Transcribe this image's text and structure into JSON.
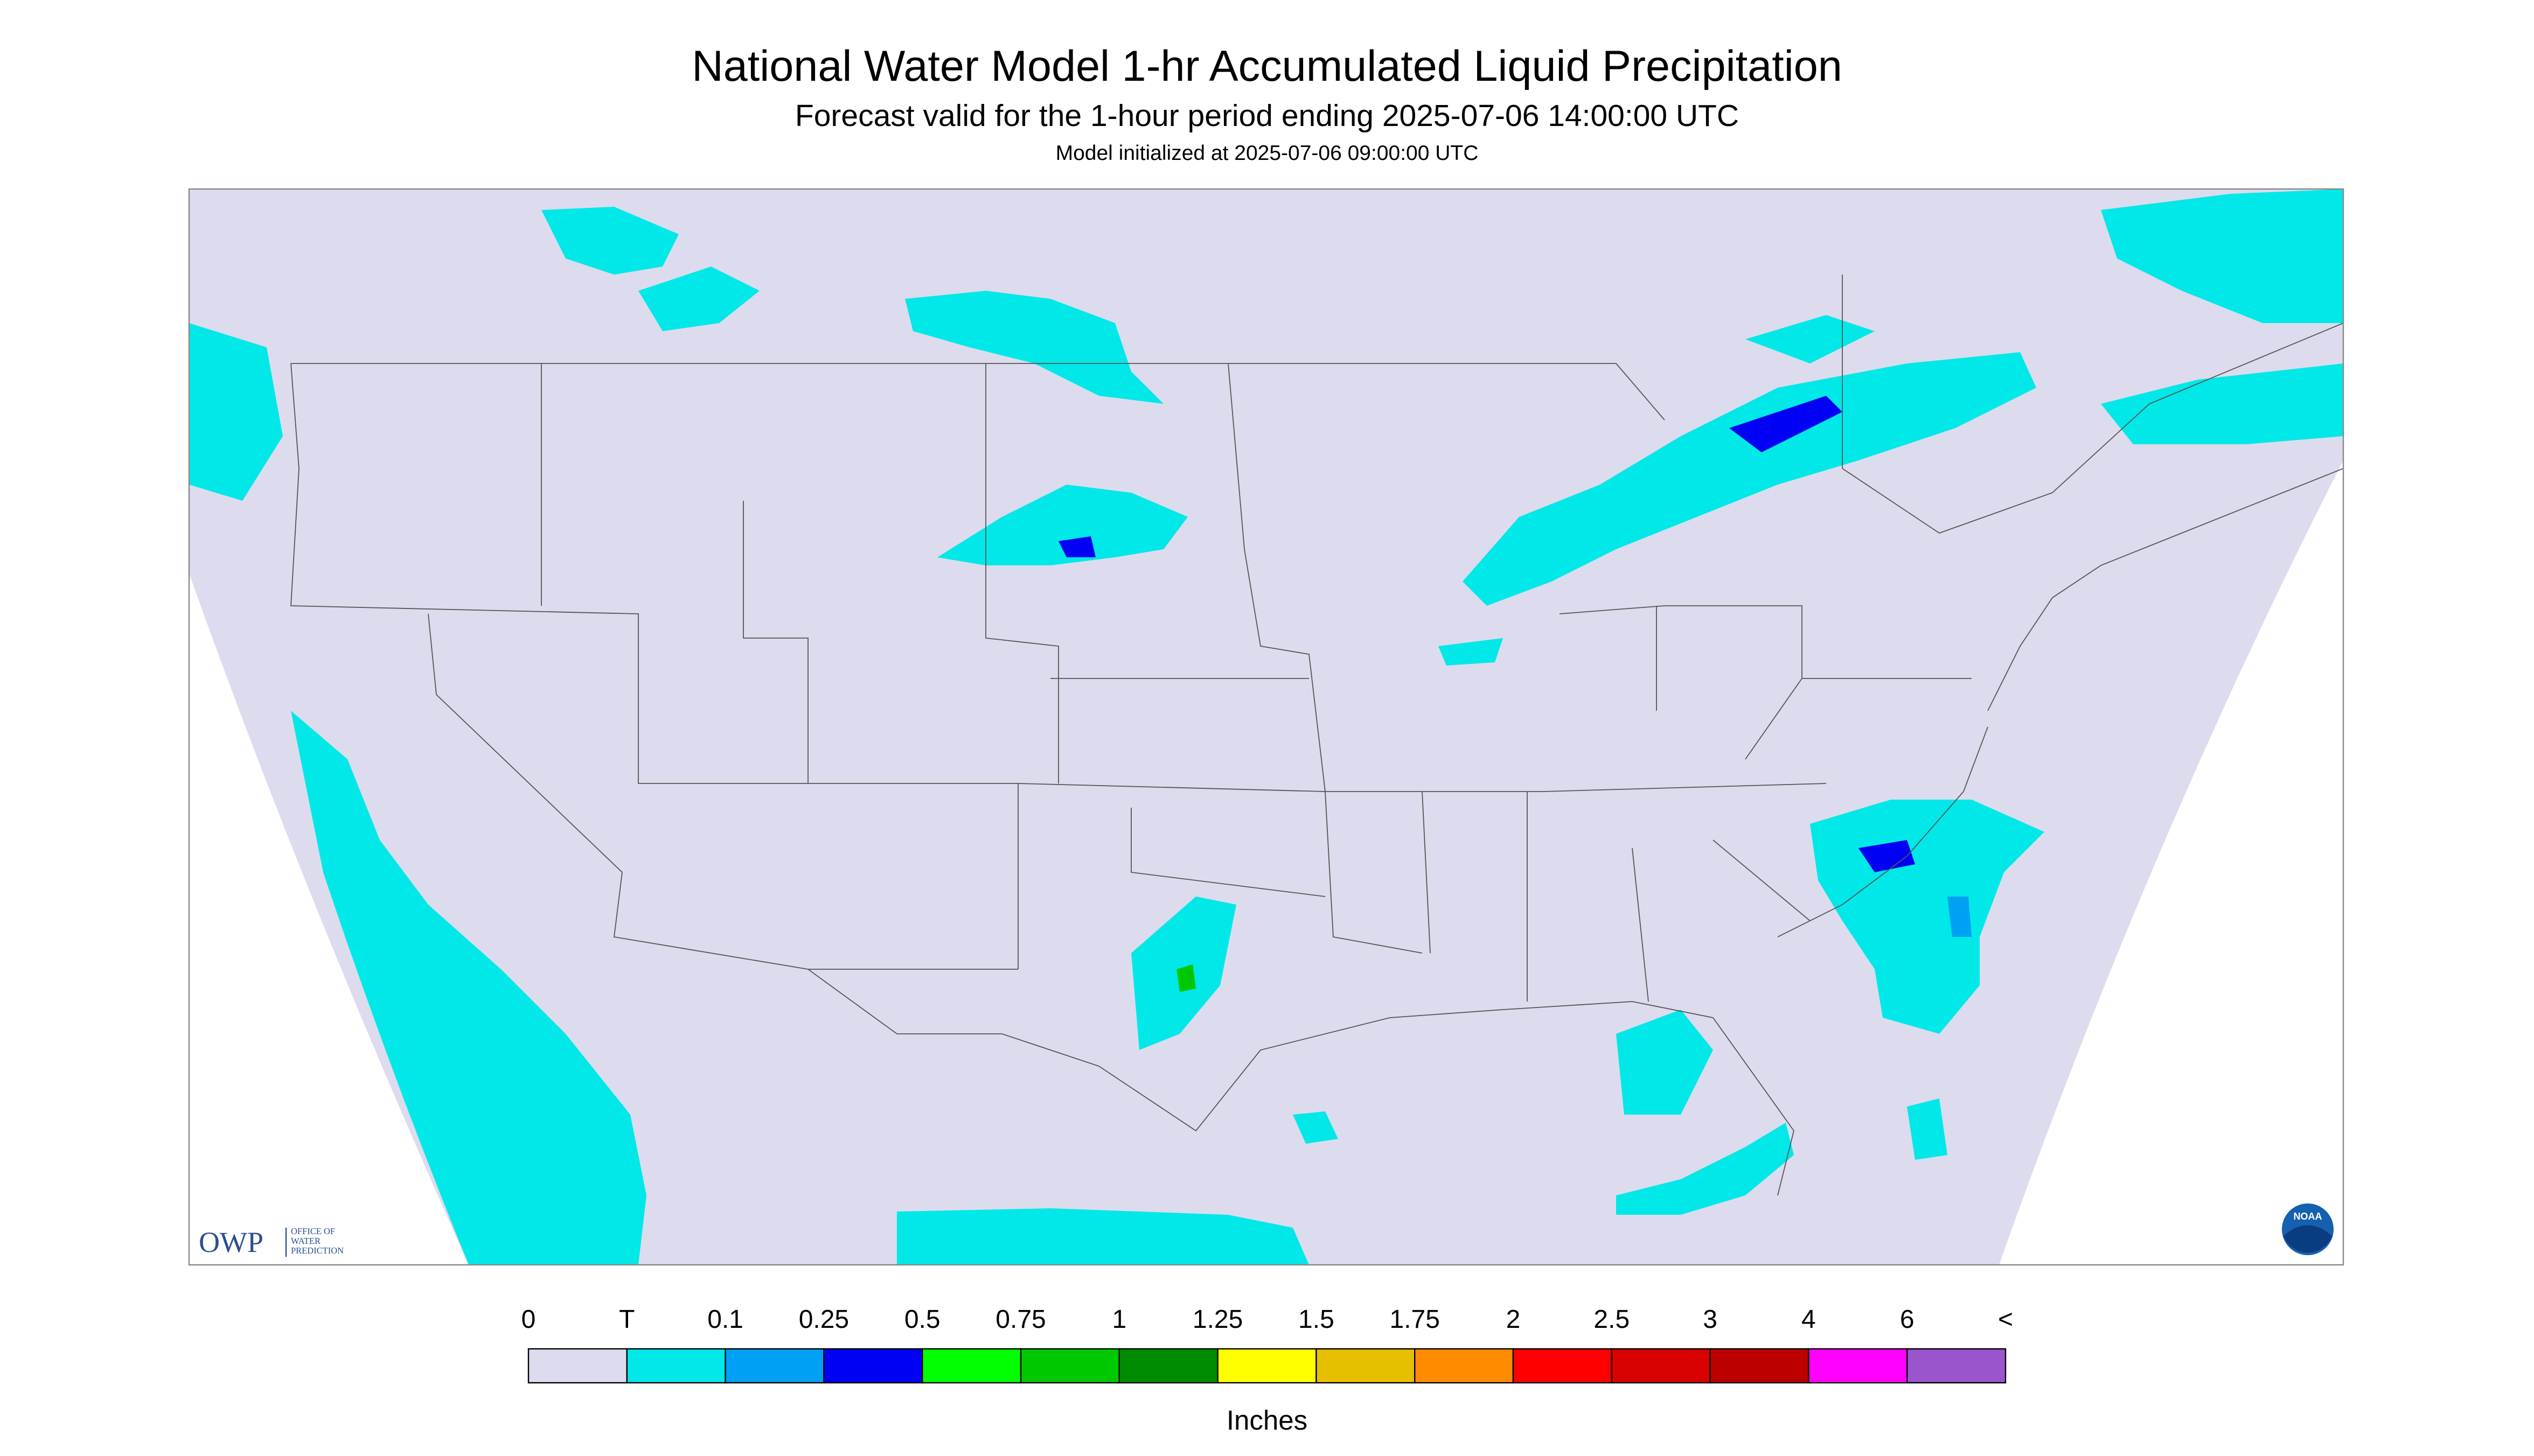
{
  "header": {
    "title": "National Water Model 1-hr Accumulated Liquid Precipitation",
    "subtitle": "Forecast valid for the 1-hour period ending 2025-07-06 14:00:00 UTC",
    "note": "Model initialized at 2025-07-06 09:00:00 UTC"
  },
  "logos": {
    "owp": "OWP",
    "owp_full": [
      "OFFICE OF",
      "WATER",
      "PREDICTION"
    ],
    "noaa": "NOAA"
  },
  "legend": {
    "labels": [
      "0",
      "T",
      "0.1",
      "0.25",
      "0.5",
      "0.75",
      "1",
      "1.25",
      "1.5",
      "1.75",
      "2",
      "2.5",
      "3",
      "4",
      "6",
      "<"
    ],
    "colors": [
      "#dcdcee",
      "#00e8e8",
      "#00a0f4",
      "#0000f4",
      "#00ff00",
      "#00c800",
      "#008c00",
      "#ffff00",
      "#e6c000",
      "#ff8c00",
      "#ff0000",
      "#d80000",
      "#bc0000",
      "#ff00ff",
      "#9a55cc"
    ],
    "units": "Inches"
  }
}
